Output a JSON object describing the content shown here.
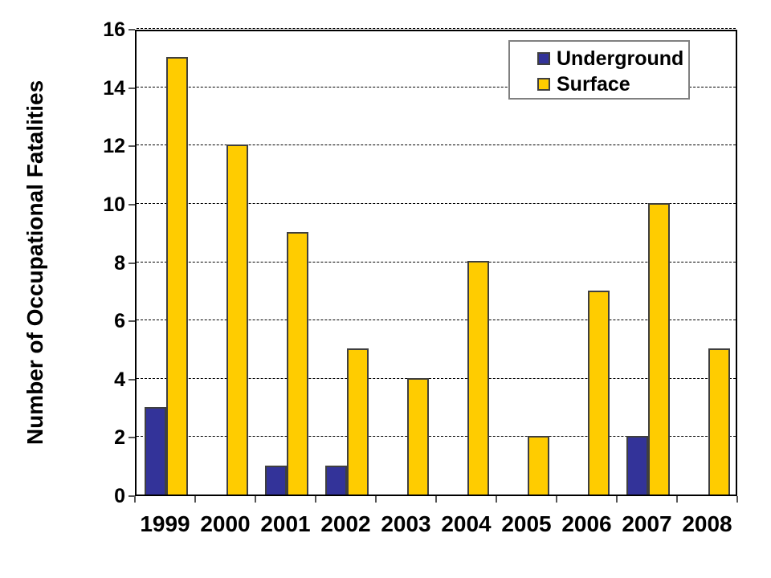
{
  "chart_data": {
    "type": "bar",
    "title": "",
    "xlabel": "",
    "ylabel": "Number of Occupational Fatalities",
    "categories": [
      "1999",
      "2000",
      "2001",
      "2002",
      "2003",
      "2004",
      "2005",
      "2006",
      "2007",
      "2008"
    ],
    "series": [
      {
        "name": "Underground",
        "color": "#333399",
        "values": [
          3,
          0,
          1,
          1,
          0,
          0,
          0,
          0,
          2,
          0
        ]
      },
      {
        "name": "Surface",
        "color": "#FFCC00",
        "values": [
          15,
          12,
          9,
          5,
          4,
          8,
          2,
          7,
          10,
          5
        ]
      }
    ],
    "ylim": [
      0,
      16
    ],
    "ytick_step": 2,
    "grid": "dashed-horizontal",
    "legend_position": "top-right",
    "bar_border_color": "#3f3f3f",
    "axis_color": "#000000",
    "legend_border_color": "#808080",
    "background_color": "#FFFFFF"
  }
}
